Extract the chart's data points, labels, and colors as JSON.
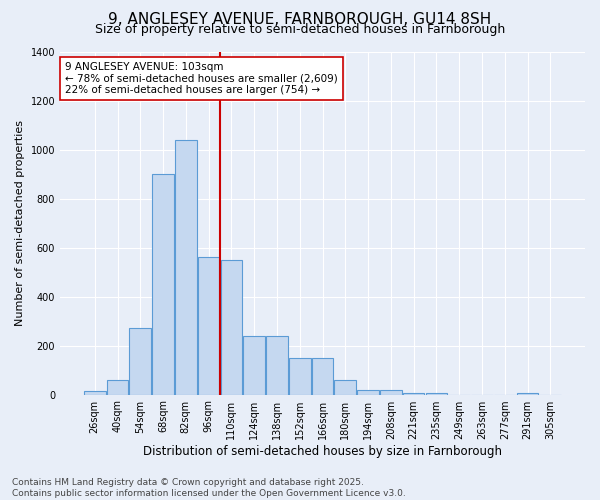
{
  "title": "9, ANGLESEY AVENUE, FARNBOROUGH, GU14 8SH",
  "subtitle": "Size of property relative to semi-detached houses in Farnborough",
  "xlabel": "Distribution of semi-detached houses by size in Farnborough",
  "ylabel": "Number of semi-detached properties",
  "bin_labels": [
    "26sqm",
    "40sqm",
    "54sqm",
    "68sqm",
    "82sqm",
    "96sqm",
    "110sqm",
    "124sqm",
    "138sqm",
    "152sqm",
    "166sqm",
    "180sqm",
    "194sqm",
    "208sqm",
    "221sqm",
    "235sqm",
    "249sqm",
    "263sqm",
    "277sqm",
    "291sqm",
    "305sqm"
  ],
  "bar_values": [
    15,
    60,
    270,
    900,
    1040,
    560,
    550,
    240,
    240,
    150,
    150,
    60,
    20,
    20,
    5,
    5,
    0,
    0,
    0,
    5,
    0
  ],
  "bar_color": "#c5d8f0",
  "bar_edge_color": "#5b9bd5",
  "property_line_bin_index": 6,
  "annotation_text": "9 ANGLESEY AVENUE: 103sqm\n← 78% of semi-detached houses are smaller (2,609)\n22% of semi-detached houses are larger (754) →",
  "annotation_box_color": "#ffffff",
  "annotation_box_edge": "#cc0000",
  "vline_color": "#cc0000",
  "ylim": [
    0,
    1400
  ],
  "yticks": [
    0,
    200,
    400,
    600,
    800,
    1000,
    1200,
    1400
  ],
  "background_color": "#e8eef8",
  "footer_text": "Contains HM Land Registry data © Crown copyright and database right 2025.\nContains public sector information licensed under the Open Government Licence v3.0.",
  "title_fontsize": 11,
  "subtitle_fontsize": 9,
  "xlabel_fontsize": 8.5,
  "ylabel_fontsize": 8,
  "tick_fontsize": 7,
  "footer_fontsize": 6.5,
  "annotation_fontsize": 7.5
}
